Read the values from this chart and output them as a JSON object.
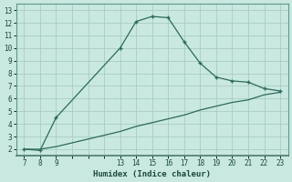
{
  "xlabel": "Humidex (Indice chaleur)",
  "bg_color": "#c8e8e0",
  "grid_color": "#a8ccc4",
  "line_color": "#2a6b5a",
  "curve1_x": [
    7,
    8,
    9,
    13,
    14,
    15,
    16,
    17,
    18,
    19,
    20,
    21,
    22,
    23
  ],
  "curve1_y": [
    2,
    1.9,
    4.5,
    10,
    12.1,
    12.5,
    12.4,
    10.5,
    8.8,
    7.7,
    7.4,
    7.3,
    6.8,
    6.6
  ],
  "curve2_x": [
    7,
    8,
    9,
    10,
    11,
    12,
    13,
    14,
    15,
    16,
    17,
    18,
    19,
    20,
    21,
    22,
    23
  ],
  "curve2_y": [
    2,
    2,
    2.2,
    2.5,
    2.8,
    3.1,
    3.4,
    3.8,
    4.1,
    4.4,
    4.7,
    5.1,
    5.4,
    5.7,
    5.9,
    6.3,
    6.5
  ],
  "xlim": [
    6.5,
    23.5
  ],
  "ylim": [
    1.5,
    13.5
  ],
  "xticks_all": [
    7,
    8,
    9,
    10,
    11,
    12,
    13,
    14,
    15,
    16,
    17,
    18,
    19,
    20,
    21,
    22,
    23
  ],
  "xtick_labels": [
    "7",
    "8",
    "9",
    "",
    "",
    "",
    "13",
    "14",
    "15",
    "16",
    "17",
    "18",
    "19",
    "20",
    "21",
    "22",
    "23"
  ],
  "yticks": [
    2,
    3,
    4,
    5,
    6,
    7,
    8,
    9,
    10,
    11,
    12,
    13
  ]
}
